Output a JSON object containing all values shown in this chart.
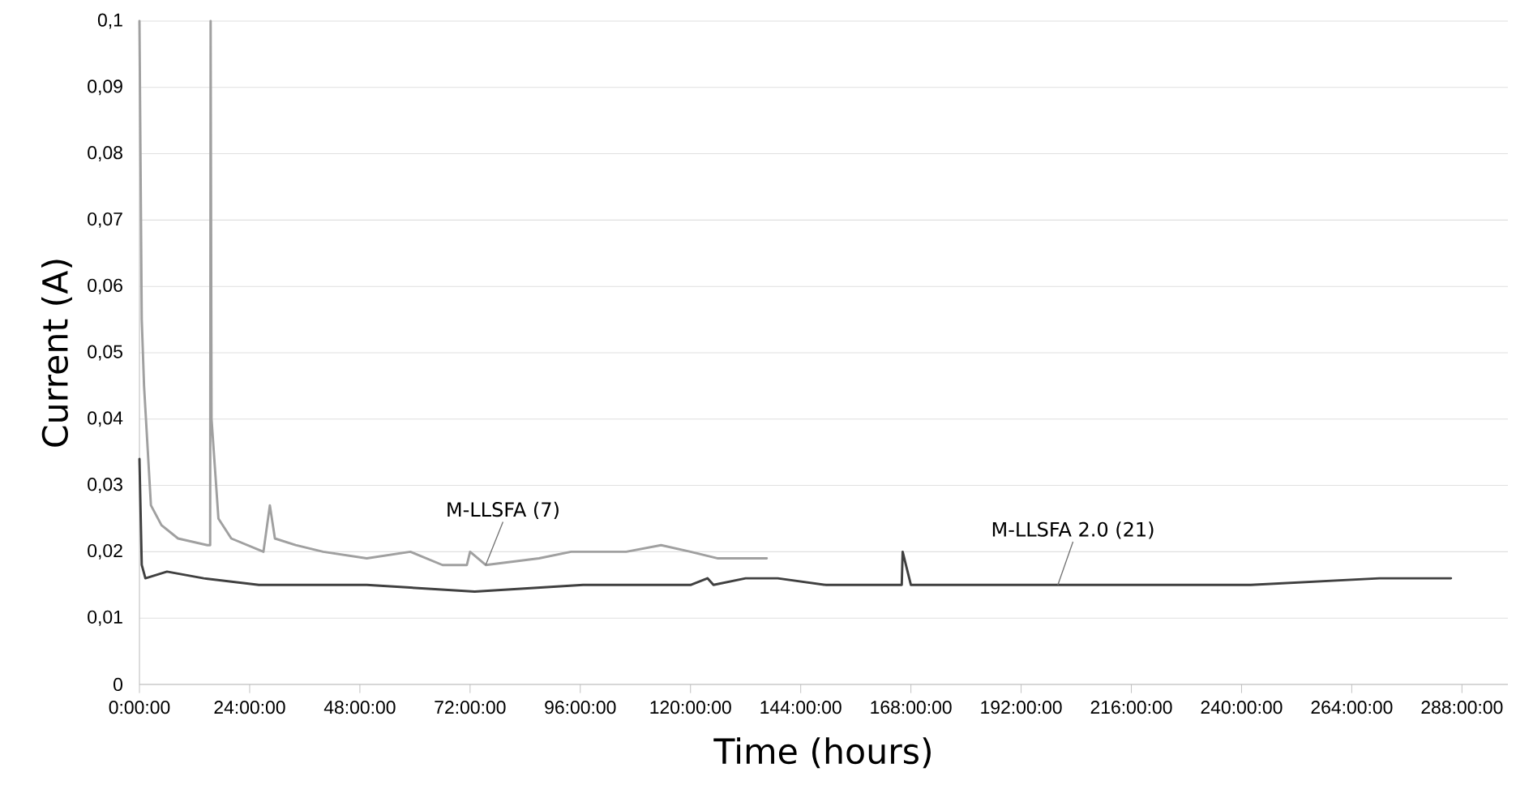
{
  "chart_data": {
    "type": "line",
    "xlabel": "Time (hours)",
    "ylabel": "Current (A)",
    "xlim": [
      0,
      298
    ],
    "ylim": [
      0,
      0.1
    ],
    "xticks": [
      {
        "value": 0,
        "label": "0:00:00"
      },
      {
        "value": 24,
        "label": "24:00:00"
      },
      {
        "value": 48,
        "label": "48:00:00"
      },
      {
        "value": 72,
        "label": "72:00:00"
      },
      {
        "value": 96,
        "label": "96:00:00"
      },
      {
        "value": 120,
        "label": "120:00:00"
      },
      {
        "value": 144,
        "label": "144:00:00"
      },
      {
        "value": 168,
        "label": "168:00:00"
      },
      {
        "value": 192,
        "label": "192:00:00"
      },
      {
        "value": 216,
        "label": "216:00:00"
      },
      {
        "value": 240,
        "label": "240:00:00"
      },
      {
        "value": 264,
        "label": "264:00:00"
      },
      {
        "value": 288,
        "label": "288:00:00"
      }
    ],
    "yticks": [
      {
        "value": 0,
        "label": "0"
      },
      {
        "value": 0.01,
        "label": "0,01"
      },
      {
        "value": 0.02,
        "label": "0,02"
      },
      {
        "value": 0.03,
        "label": "0,03"
      },
      {
        "value": 0.04,
        "label": "0,04"
      },
      {
        "value": 0.05,
        "label": "0,05"
      },
      {
        "value": 0.06,
        "label": "0,06"
      },
      {
        "value": 0.07,
        "label": "0,07"
      },
      {
        "value": 0.08,
        "label": "0,08"
      },
      {
        "value": 0.09,
        "label": "0,09"
      },
      {
        "value": 0.1,
        "label": "0,1"
      }
    ],
    "grid": "y",
    "legend": false,
    "marker": "none",
    "line_style": "solid",
    "series": [
      {
        "name": "M-LLSFA (7)",
        "color": "#a0a0a0",
        "x": [
          0,
          0.5,
          1,
          2.5,
          4.8,
          8.4,
          14.8,
          15.4,
          15.5,
          15.7,
          17.2,
          20,
          27,
          28.4,
          29.5,
          34,
          40,
          49.5,
          59,
          66,
          71.3,
          72,
          75.4,
          87,
          94,
          106,
          113.6,
          120,
          126,
          136.6
        ],
        "values": [
          0.1,
          0.055,
          0.045,
          0.027,
          0.024,
          0.022,
          0.021,
          0.021,
          0.1,
          0.04,
          0.025,
          0.022,
          0.02,
          0.027,
          0.022,
          0.021,
          0.02,
          0.019,
          0.02,
          0.018,
          0.018,
          0.02,
          0.018,
          0.019,
          0.02,
          0.02,
          0.021,
          0.02,
          0.019,
          0.019
        ]
      },
      {
        "name": "M-LLSFA 2.0 (21)",
        "color": "#404040",
        "x": [
          0,
          0.5,
          1.3,
          6,
          14,
          26,
          49.5,
          73,
          96.6,
          120,
          123.7,
          125,
          132,
          139,
          149.5,
          166,
          166.2,
          168,
          200,
          242,
          270,
          270.6,
          285.6
        ],
        "values": [
          0.034,
          0.018,
          0.016,
          0.017,
          0.016,
          0.015,
          0.015,
          0.014,
          0.015,
          0.015,
          0.016,
          0.015,
          0.016,
          0.016,
          0.015,
          0.015,
          0.02,
          0.015,
          0.015,
          0.015,
          0.016,
          0.016,
          0.016
        ]
      }
    ]
  }
}
